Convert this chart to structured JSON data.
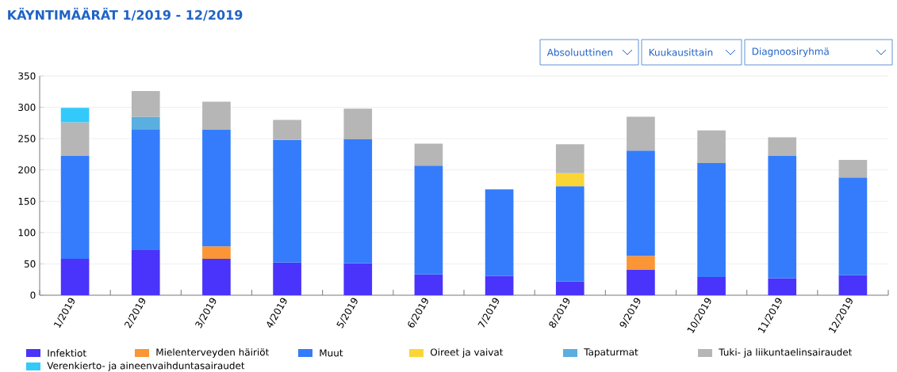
{
  "chart_data": {
    "type": "bar",
    "stacked": true,
    "title": "KÄYNTIMÄÄRÄT 1/2019 - 12/2019",
    "annotations": [
      "Absoluuttinen",
      "Kuukausittain",
      "Diagnoosiryhmä"
    ],
    "categories": [
      "1/2019",
      "2/2019",
      "3/2019",
      "4/2019",
      "5/2019",
      "6/2019",
      "7/2019",
      "8/2019",
      "9/2019",
      "10/2019",
      "11/2019",
      "12/2019"
    ],
    "series": [
      {
        "name": "Infektiot",
        "color": "#4a33fa",
        "values": [
          58,
          72,
          58,
          52,
          51,
          33,
          31,
          22,
          41,
          29,
          27,
          32
        ]
      },
      {
        "name": "Mielenterveyden häiriöt",
        "color": "#fb9535",
        "values": [
          null,
          null,
          20,
          null,
          null,
          null,
          null,
          null,
          22,
          null,
          null,
          null
        ]
      },
      {
        "name": "Muut",
        "color": "#347cfb",
        "values": [
          165,
          193,
          186,
          196,
          198,
          174,
          138,
          152,
          168,
          182,
          196,
          156
        ]
      },
      {
        "name": "Oireet ja vaivat",
        "color": "#fbd535",
        "values": [
          null,
          null,
          null,
          null,
          null,
          null,
          null,
          21,
          null,
          null,
          null,
          null
        ]
      },
      {
        "name": "Tapaturmat",
        "color": "#5baee0",
        "values": [
          null,
          20,
          null,
          null,
          null,
          null,
          null,
          null,
          null,
          null,
          null,
          null
        ]
      },
      {
        "name": "Tuki- ja liikuntaelinsairaudet",
        "color": "#b6b6b6",
        "values": [
          53,
          41,
          45,
          32,
          49,
          35,
          null,
          46,
          54,
          52,
          29,
          28
        ]
      },
      {
        "name": "Verenkierto- ja aineenvaihduntasairaudet",
        "color": "#33c9fb",
        "values": [
          23,
          null,
          null,
          null,
          null,
          null,
          null,
          null,
          null,
          null,
          null,
          null
        ]
      }
    ],
    "ylim": [
      0,
      350
    ],
    "yticks": [
      0,
      50,
      100,
      150,
      200,
      250,
      300,
      350
    ],
    "grid": "y",
    "legend": "bottom"
  }
}
